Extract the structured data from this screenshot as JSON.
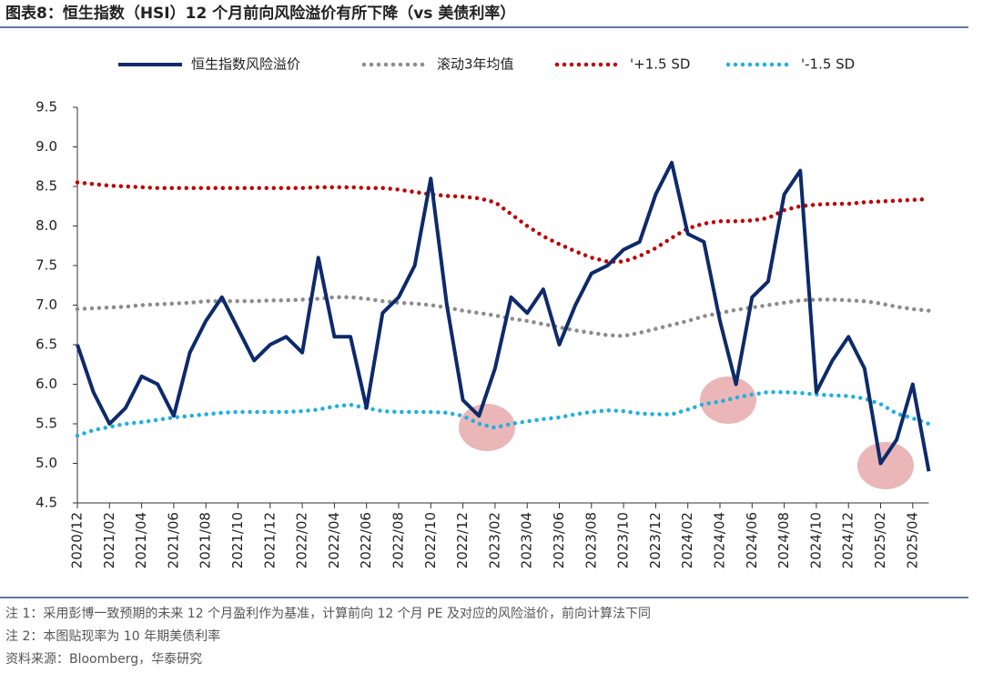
{
  "chart_data": {
    "type": "line",
    "title": "图表8：恒生指数（HSI）12 个月前向风险溢价有所下降（vs 美债利率）",
    "categories": [
      "2020/12",
      null,
      "2021/02",
      null,
      "2021/04",
      null,
      "2021/06",
      null,
      "2021/08",
      null,
      "2021/10",
      null,
      "2021/12",
      null,
      "2022/02",
      null,
      "2022/04",
      null,
      "2022/06",
      null,
      "2022/08",
      null,
      "2022/10",
      null,
      "2022/12",
      null,
      "2023/02",
      null,
      "2023/04",
      null,
      "2023/06",
      null,
      "2023/08",
      null,
      "2023/10",
      null,
      "2023/12",
      null,
      "2024/02",
      null,
      "2024/04",
      null,
      "2024/06",
      null,
      "2024/08",
      null,
      "2024/10",
      null,
      "2024/12",
      null,
      "2025/02",
      null,
      "2025/04",
      null
    ],
    "series": [
      {
        "name": "恒生指数风险溢价",
        "color": "#0d2a6b",
        "style": "solid",
        "values": [
          6.5,
          5.9,
          5.5,
          5.7,
          6.1,
          6.0,
          5.6,
          6.4,
          6.8,
          7.1,
          6.7,
          6.3,
          6.5,
          6.6,
          6.4,
          7.6,
          6.6,
          6.6,
          5.7,
          6.9,
          7.1,
          7.5,
          8.6,
          7.0,
          5.8,
          5.6,
          6.2,
          7.1,
          6.9,
          7.2,
          6.5,
          7.0,
          7.4,
          7.5,
          7.7,
          7.8,
          8.4,
          8.8,
          7.9,
          7.8,
          6.8,
          6.0,
          7.1,
          7.3,
          8.4,
          8.7,
          5.9,
          6.3,
          6.6,
          6.2,
          5.0,
          5.3,
          6.0,
          4.9
        ]
      },
      {
        "name": "滚动3年均值",
        "color": "#8c8c8c",
        "style": "dotted",
        "values": [
          6.95,
          6.96,
          6.97,
          6.98,
          7.0,
          7.01,
          7.02,
          7.03,
          7.05,
          7.05,
          7.05,
          7.05,
          7.06,
          7.06,
          7.07,
          7.08,
          7.1,
          7.1,
          7.08,
          7.05,
          7.03,
          7.02,
          7.0,
          6.97,
          6.93,
          6.9,
          6.87,
          6.83,
          6.8,
          6.76,
          6.72,
          6.68,
          6.65,
          6.62,
          6.61,
          6.65,
          6.7,
          6.75,
          6.8,
          6.86,
          6.9,
          6.94,
          6.97,
          7.0,
          7.03,
          7.06,
          7.07,
          7.07,
          7.06,
          7.05,
          7.02,
          6.98,
          6.95,
          6.93
        ]
      },
      {
        "name": "'+1.5 SD",
        "color": "#c00000",
        "style": "dotted",
        "values": [
          8.55,
          8.53,
          8.51,
          8.5,
          8.49,
          8.48,
          8.48,
          8.48,
          8.48,
          8.48,
          8.48,
          8.48,
          8.48,
          8.48,
          8.48,
          8.49,
          8.49,
          8.49,
          8.48,
          8.48,
          8.46,
          8.43,
          8.4,
          8.38,
          8.37,
          8.35,
          8.3,
          8.15,
          8.0,
          7.87,
          7.77,
          7.68,
          7.6,
          7.55,
          7.55,
          7.62,
          7.72,
          7.85,
          7.97,
          8.03,
          8.06,
          8.06,
          8.07,
          8.1,
          8.2,
          8.25,
          8.27,
          8.28,
          8.28,
          8.3,
          8.31,
          8.32,
          8.33,
          8.34
        ]
      },
      {
        "name": "'-1.5 SD",
        "color": "#1fb0e0",
        "style": "dotted",
        "values": [
          5.35,
          5.42,
          5.46,
          5.5,
          5.52,
          5.55,
          5.58,
          5.6,
          5.62,
          5.64,
          5.65,
          5.65,
          5.65,
          5.65,
          5.66,
          5.68,
          5.72,
          5.74,
          5.7,
          5.66,
          5.65,
          5.65,
          5.65,
          5.64,
          5.6,
          5.5,
          5.45,
          5.5,
          5.53,
          5.56,
          5.58,
          5.62,
          5.65,
          5.67,
          5.66,
          5.63,
          5.62,
          5.62,
          5.68,
          5.75,
          5.78,
          5.83,
          5.87,
          5.9,
          5.9,
          5.89,
          5.87,
          5.86,
          5.85,
          5.82,
          5.75,
          5.63,
          5.57,
          5.5
        ]
      }
    ],
    "ylim": [
      4.5,
      9.5
    ],
    "yticks": [
      {
        "value": 4.5,
        "label": "4.5"
      },
      {
        "value": 5,
        "label": "5.0"
      },
      {
        "value": 5.5,
        "label": "5.5"
      },
      {
        "value": 6,
        "label": "6.0"
      },
      {
        "value": 6.5,
        "label": "6.5"
      },
      {
        "value": 7,
        "label": "7.0"
      },
      {
        "value": 7.5,
        "label": "7.5"
      },
      {
        "value": 8,
        "label": "8.0"
      },
      {
        "value": 8.5,
        "label": "8.5"
      },
      {
        "value": 9,
        "label": "9.0"
      },
      {
        "value": 9.5,
        "label": "9.5"
      }
    ],
    "grid": false,
    "legend": "top"
  },
  "notes": [
    "注 1：采用彭博一致预期的未来 12 个月盈利作为基准，计算前向 12 个月 PE 及对应的风险溢价，前向计算法下同",
    "注 2：本图贴现率为 10 年期美债利率"
  ],
  "source": "资料来源：Bloomberg，华泰研究"
}
